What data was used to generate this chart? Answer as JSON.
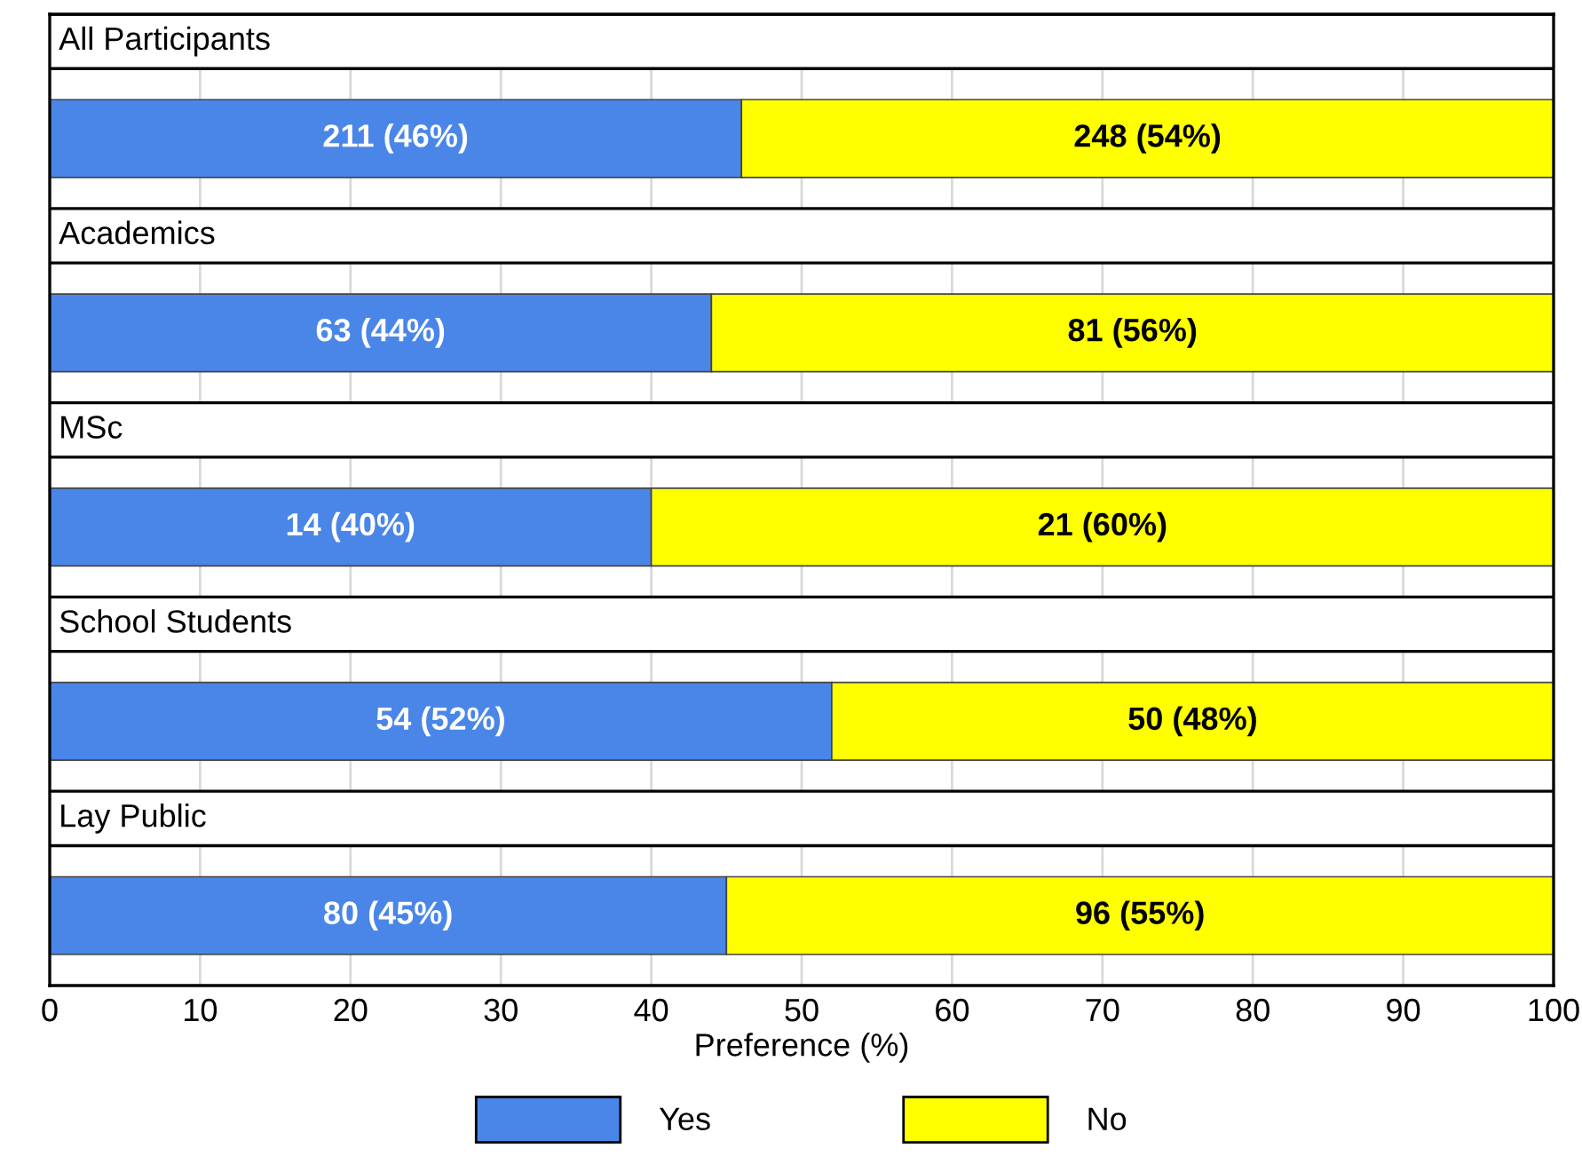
{
  "chart_data": {
    "type": "bar",
    "orientation": "horizontal",
    "stacked": true,
    "categories": [
      "All Participants",
      "Academics",
      "MSc",
      "School Students",
      "Lay Public"
    ],
    "series": [
      {
        "name": "Yes",
        "color": "#4a86e8",
        "values": [
          46,
          44,
          40,
          52,
          45
        ],
        "value_labels": [
          "211 (46%)",
          "63 (44%)",
          "14 (40%)",
          "54 (52%)",
          "80 (45%)"
        ]
      },
      {
        "name": "No",
        "color": "#ffff00",
        "values": [
          54,
          56,
          60,
          48,
          55
        ],
        "value_labels": [
          "248 (54%)",
          "81 (56%)",
          "21 (60%)",
          "50 (48%)",
          "96 (55%)"
        ]
      }
    ],
    "xlabel": "Preference (%)",
    "xlim": [
      0,
      100
    ],
    "xticks": [
      0,
      10,
      20,
      30,
      40,
      50,
      60,
      70,
      80,
      90,
      100
    ],
    "grid": "x",
    "legend": "bottom"
  }
}
